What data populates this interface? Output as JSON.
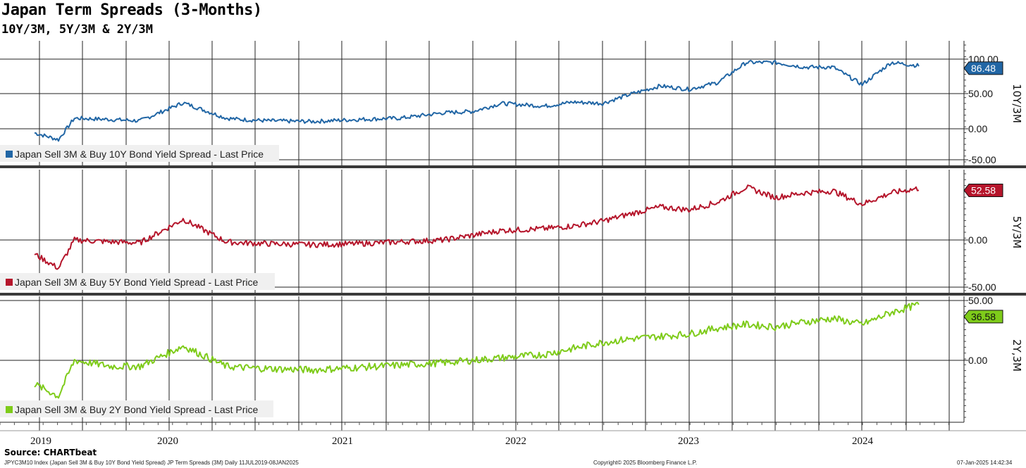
{
  "title": "Japan Term Spreads (3-Months)",
  "subtitle": "10Y/3M, 5Y/3M & 2Y/3M",
  "source": "Source: CHARTbeat",
  "footer": {
    "left": "JPYC3M10 Index (Japan Sell 3M & Buy 10Y Bond Yield Spread) JP Term Spreads (3M)  Daily 11JUL2019-08JAN2025",
    "center": "Copyright© 2025 Bloomberg Finance L.P.",
    "right": "07-Jan-2025 14:42:34"
  },
  "chart_data": [
    {
      "type": "line",
      "series": [
        {
          "name": "Japan Sell 3M & Buy 10Y Bond Yield Spread - Last Price",
          "color": "#2166a5",
          "x": [
            "2019-07",
            "2019-10",
            "2019-12",
            "2020-03",
            "2020-05",
            "2020-08",
            "2020-11",
            "2020-12",
            "2021-02",
            "2021-05",
            "2021-08",
            "2021-11",
            "2022-02",
            "2022-04",
            "2022-06",
            "2022-09",
            "2022-11",
            "2023-01",
            "2023-03",
            "2023-05",
            "2023-07",
            "2023-09",
            "2023-11",
            "2024-01",
            "2024-03",
            "2024-05",
            "2024-07",
            "2024-09",
            "2024-11",
            "2025-01"
          ],
          "values": [
            -10,
            -20,
            12,
            10,
            8,
            35,
            12,
            10,
            8,
            7,
            10,
            12,
            20,
            22,
            34,
            30,
            36,
            34,
            48,
            60,
            55,
            65,
            95,
            95,
            88,
            88,
            62,
            95,
            90,
            86.48
          ]
        }
      ],
      "yticks": [
        "100.00",
        "50.00",
        "0.00",
        "-50.00"
      ],
      "ylim": [
        -50,
        115
      ],
      "ylabel": "10Y/3M",
      "last_value": "86.48"
    },
    {
      "type": "line",
      "series": [
        {
          "name": "Japan Sell 3M & Buy 5Y Bond Yield Spread - Last Price",
          "color": "#b5152b",
          "x": [
            "2019-07",
            "2019-10",
            "2019-12",
            "2020-03",
            "2020-05",
            "2020-08",
            "2020-11",
            "2020-12",
            "2021-02",
            "2021-05",
            "2021-08",
            "2021-11",
            "2022-02",
            "2022-04",
            "2022-06",
            "2022-09",
            "2022-11",
            "2023-01",
            "2023-03",
            "2023-05",
            "2023-07",
            "2023-09",
            "2023-11",
            "2024-01",
            "2024-03",
            "2024-05",
            "2024-07",
            "2024-09",
            "2024-11",
            "2025-01"
          ],
          "values": [
            -15,
            -30,
            0,
            -2,
            -3,
            22,
            -2,
            -3,
            -4,
            -5,
            -4,
            -2,
            0,
            5,
            10,
            12,
            15,
            20,
            28,
            35,
            32,
            40,
            56,
            45,
            50,
            52,
            38,
            50,
            55,
            52.58
          ]
        }
      ],
      "yticks": [
        "0.00",
        "-50.00"
      ],
      "ylim": [
        -60,
        70
      ],
      "ylabel": "5Y/3M",
      "last_value": "52.58"
    },
    {
      "type": "line",
      "series": [
        {
          "name": "Japan Sell 3M & Buy 2Y Bond Yield Spread - Last Price",
          "color": "#7ecb1a",
          "x": [
            "2019-07",
            "2019-10",
            "2019-12",
            "2020-03",
            "2020-05",
            "2020-08",
            "2020-11",
            "2020-12",
            "2021-02",
            "2021-05",
            "2021-08",
            "2021-11",
            "2022-02",
            "2022-04",
            "2022-06",
            "2022-09",
            "2022-11",
            "2023-01",
            "2023-03",
            "2023-05",
            "2023-07",
            "2023-09",
            "2023-11",
            "2024-01",
            "2024-03",
            "2024-05",
            "2024-07",
            "2024-09",
            "2024-11",
            "2025-01"
          ],
          "values": [
            -20,
            -30,
            0,
            -5,
            -5,
            12,
            -5,
            -6,
            -7,
            -8,
            -6,
            -4,
            -2,
            0,
            2,
            5,
            10,
            15,
            18,
            20,
            22,
            27,
            30,
            28,
            32,
            35,
            30,
            40,
            47,
            36.58
          ]
        }
      ],
      "yticks": [
        "50.00",
        "0.00"
      ],
      "ylim": [
        -60,
        55
      ],
      "ylabel": "2Y,3M",
      "last_value": "36.58"
    }
  ],
  "x_axis": {
    "years": [
      "2019",
      "2020",
      "2021",
      "2022",
      "2023",
      "2024"
    ]
  }
}
